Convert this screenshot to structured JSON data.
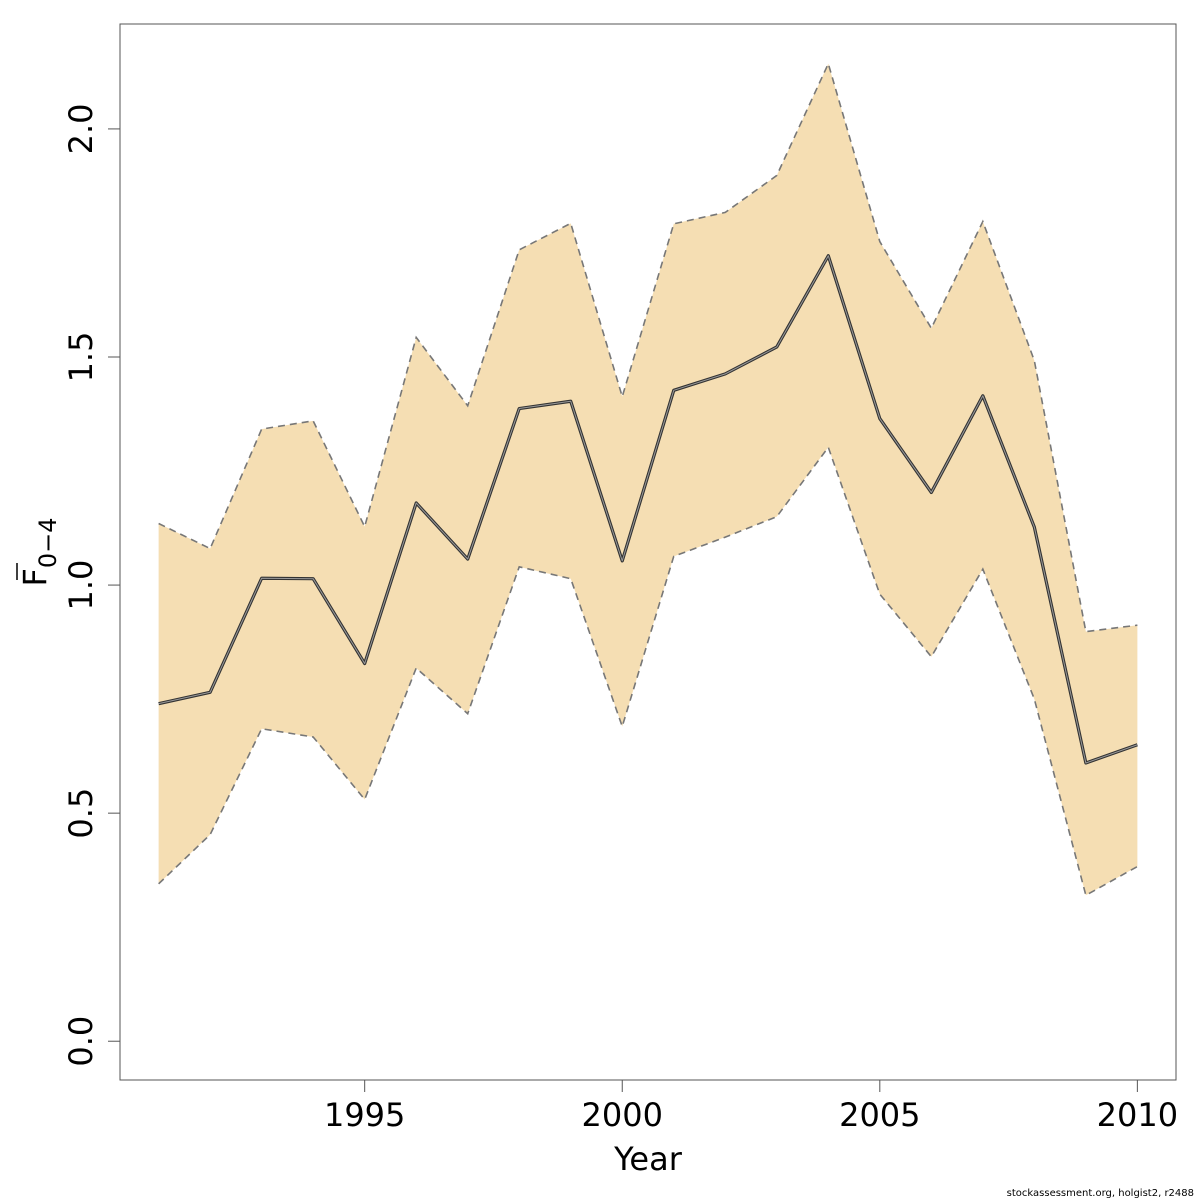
{
  "chart_data": {
    "type": "area",
    "x": [
      1991,
      1992,
      1993,
      1994,
      1995,
      1996,
      1997,
      1998,
      1999,
      2000,
      2001,
      2002,
      2003,
      2004,
      2005,
      2006,
      2007,
      2008,
      2009,
      2010
    ],
    "series": [
      {
        "role": "estimate",
        "values": [
          0.74,
          0.765,
          1.015,
          1.014,
          0.828,
          1.18,
          1.057,
          1.387,
          1.403,
          1.053,
          1.427,
          1.463,
          1.522,
          1.722,
          1.365,
          1.203,
          1.415,
          1.127,
          0.61,
          0.65
        ]
      },
      {
        "role": "upper",
        "values": [
          1.135,
          1.08,
          1.342,
          1.36,
          1.128,
          1.543,
          1.393,
          1.735,
          1.793,
          1.413,
          1.792,
          1.817,
          1.898,
          2.143,
          1.753,
          1.563,
          1.797,
          1.492,
          0.898,
          0.912
        ]
      },
      {
        "role": "lower",
        "values": [
          0.345,
          0.453,
          0.685,
          0.667,
          0.53,
          0.818,
          0.718,
          1.04,
          1.014,
          0.69,
          1.063,
          1.105,
          1.15,
          1.302,
          0.98,
          0.843,
          1.035,
          0.75,
          0.32,
          0.383
        ]
      }
    ],
    "xlim": [
      1990.25,
      2010.75
    ],
    "ylim": [
      -0.085,
      2.23
    ],
    "xticks": [
      1995,
      2000,
      2005,
      2010
    ],
    "yticks": [
      0.0,
      0.5,
      1.0,
      1.5,
      2.0
    ],
    "xtick_labels": [
      "1995",
      "2000",
      "2005",
      "2010"
    ],
    "ytick_labels": [
      "0.0",
      "0.5",
      "1.0",
      "1.5",
      "2.0"
    ],
    "xlabel": "Year",
    "ylabel_main": "F",
    "ylabel_sub": "0−4",
    "title": "",
    "band_color": "#f5deb3",
    "line_color": "#333333",
    "bound_color": "#777777",
    "grid": false
  },
  "footer_text": "stockassessment.org, holgist2, r2488"
}
